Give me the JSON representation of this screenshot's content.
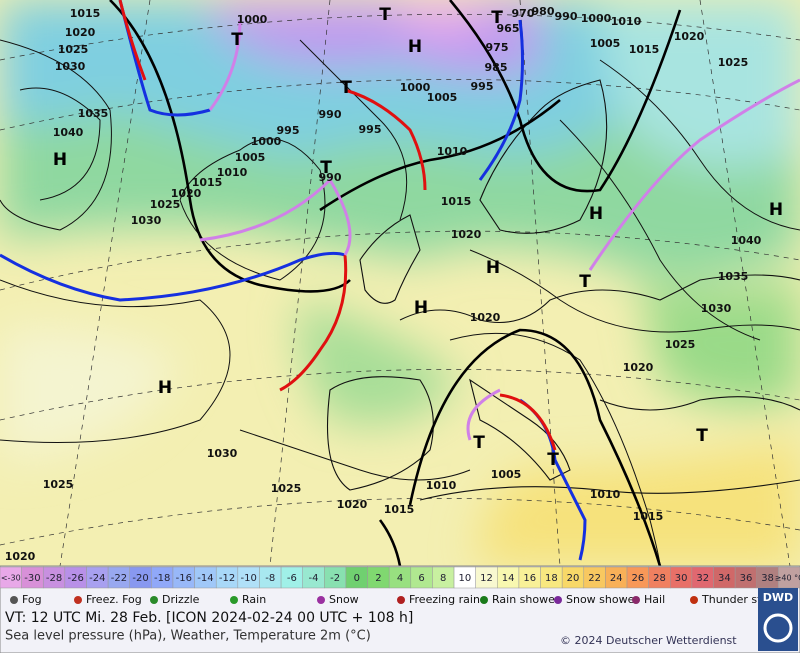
{
  "map": {
    "pressure_labels": [
      "1015",
      "1020",
      "1025",
      "1030",
      "1035",
      "1040",
      "1000",
      "995",
      "990",
      "995",
      "1000",
      "1005",
      "1010",
      "1015",
      "1020",
      "1025",
      "1030",
      "990",
      "1000",
      "1005",
      "995",
      "985",
      "975",
      "965",
      "970",
      "980",
      "990",
      "1000",
      "1010",
      "1005",
      "1015",
      "1020",
      "1025",
      "1010",
      "1015",
      "1020",
      "1020",
      "1035",
      "1030",
      "1040",
      "1025",
      "1020",
      "1030",
      "1025",
      "1025",
      "1020",
      "1015",
      "1010",
      "1005",
      "1010",
      "1015",
      "1020"
    ],
    "systems": [
      "H",
      "H",
      "T",
      "T",
      "T",
      "T",
      "T",
      "H",
      "H",
      "H",
      "T",
      "H",
      "H",
      "T",
      "T",
      "T"
    ]
  },
  "legend": {
    "scale": [
      {
        "label": "<-30",
        "color": "#e8a8e8"
      },
      {
        "label": "-30",
        "color": "#d890d8"
      },
      {
        "label": "-28",
        "color": "#c890e0"
      },
      {
        "label": "-26",
        "color": "#b890e8"
      },
      {
        "label": "-24",
        "color": "#a8a0f0"
      },
      {
        "label": "-22",
        "color": "#98a8f0"
      },
      {
        "label": "-20",
        "color": "#8898f0"
      },
      {
        "label": "-18",
        "color": "#90a8f8"
      },
      {
        "label": "-16",
        "color": "#98b8f8"
      },
      {
        "label": "-14",
        "color": "#a0c8f8"
      },
      {
        "label": "-12",
        "color": "#a8d8f8"
      },
      {
        "label": "-10",
        "color": "#b0e0f8"
      },
      {
        "label": "-8",
        "color": "#a8e8f0"
      },
      {
        "label": "-6",
        "color": "#a0f0e8"
      },
      {
        "label": "-4",
        "color": "#98e8d0"
      },
      {
        "label": "-2",
        "color": "#88e0b0"
      },
      {
        "label": "0",
        "color": "#70d070"
      },
      {
        "label": "2",
        "color": "#80d870"
      },
      {
        "label": "4",
        "color": "#98e080"
      },
      {
        "label": "6",
        "color": "#b0e890"
      },
      {
        "label": "8",
        "color": "#c8f0a0"
      },
      {
        "label": "10",
        "color": "#ffffff"
      },
      {
        "label": "12",
        "color": "#f8f8d0"
      },
      {
        "label": "14",
        "color": "#f8f8b0"
      },
      {
        "label": "16",
        "color": "#f8f098"
      },
      {
        "label": "18",
        "color": "#f8e880"
      },
      {
        "label": "20",
        "color": "#f8d868"
      },
      {
        "label": "22",
        "color": "#f8c860"
      },
      {
        "label": "24",
        "color": "#f8b058"
      },
      {
        "label": "26",
        "color": "#f89858"
      },
      {
        "label": "28",
        "color": "#f08060"
      },
      {
        "label": "30",
        "color": "#e87068"
      },
      {
        "label": "32",
        "color": "#e06870"
      },
      {
        "label": "34",
        "color": "#d06868"
      },
      {
        "label": "36",
        "color": "#c07070"
      },
      {
        "label": "38",
        "color": "#b08080"
      },
      {
        "label": "≥40 °C",
        "color": "#c0a0a0"
      }
    ],
    "weather": [
      "Fog",
      "Freez. Fog",
      "Drizzle",
      "Rain",
      "Snow",
      "Freezing rain",
      "Rain shower",
      "Snow shower",
      "Hail",
      "Thunder storm"
    ]
  },
  "footer": {
    "valid_time": "VT: 12 UTC Mi.  28 Feb. [ICON 2024-02-24  00 UTC + 108 h]",
    "description": "Sea level pressure (hPa), Weather, Temperature 2m (°C)",
    "copyright": "© 2024 Deutscher Wetterdienst",
    "logo": "DWD"
  }
}
